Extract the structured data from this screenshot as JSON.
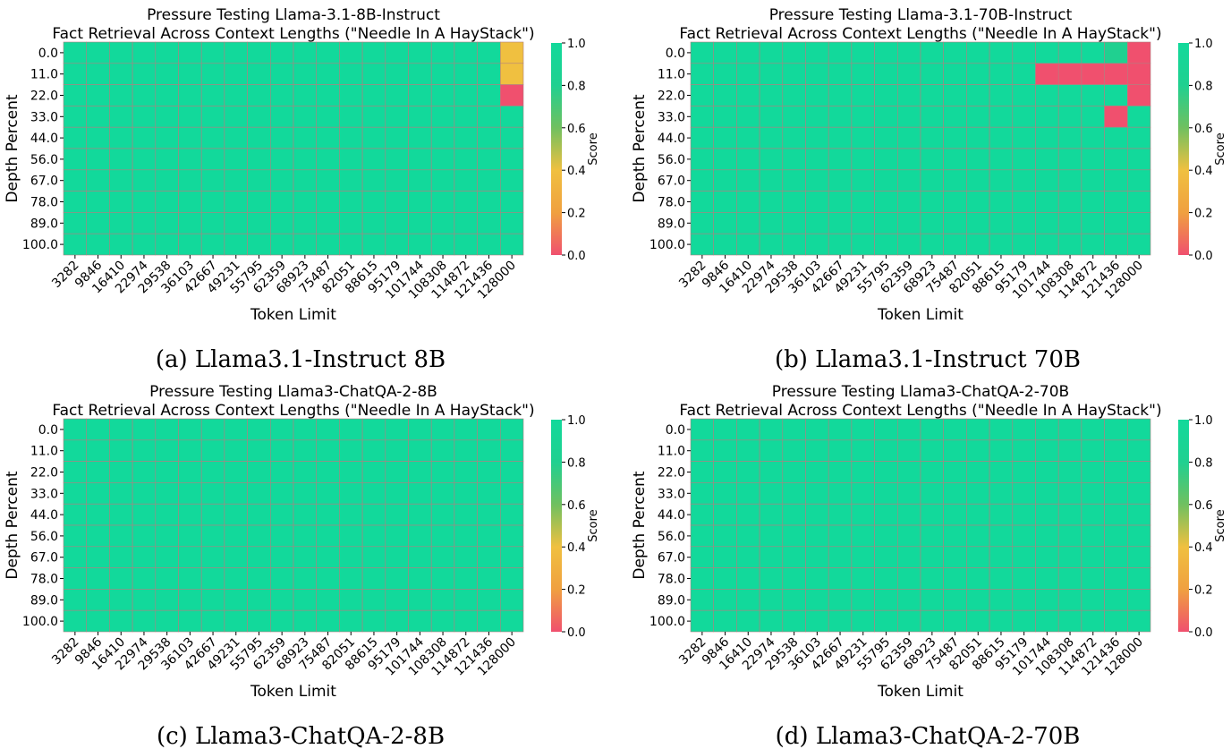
{
  "figure": {
    "colorbar_ticks": [
      "1.0",
      "0.8",
      "0.6",
      "0.4",
      "0.2",
      "0.0"
    ],
    "colormap": [
      "#F0506E",
      "#F0A040",
      "#F0C040",
      "#70C060",
      "#20D090",
      "#12D99B"
    ],
    "grid_color": "#B08080"
  },
  "chart_data": [
    {
      "type": "heatmap",
      "title_line1": "Pressure Testing Llama-3.1-8B-Instruct",
      "title_line2": "Fact Retrieval Across Context Lengths (\"Needle In A HayStack\")",
      "xlabel": "Token Limit",
      "ylabel": "Depth Percent",
      "colorbar_label": "Score",
      "caption": "(a) Llama3.1-Instruct 8B",
      "x": [
        "3282",
        "9846",
        "16410",
        "22974",
        "29538",
        "36103",
        "42667",
        "49231",
        "55795",
        "62359",
        "68923",
        "75487",
        "82051",
        "88615",
        "95179",
        "101744",
        "108308",
        "114872",
        "121436",
        "128000"
      ],
      "y": [
        "0.0",
        "11.0",
        "22.0",
        "33.0",
        "44.0",
        "56.0",
        "67.0",
        "78.0",
        "89.0",
        "100.0"
      ],
      "zlim": [
        0,
        1
      ],
      "default": 1.0,
      "cells": [
        {
          "x": "128000",
          "y": "0.0",
          "value": 0.4
        },
        {
          "x": "128000",
          "y": "11.0",
          "value": 0.4
        },
        {
          "x": "128000",
          "y": "22.0",
          "value": 0.0
        }
      ]
    },
    {
      "type": "heatmap",
      "title_line1": "Pressure Testing Llama-3.1-70B-Instruct",
      "title_line2": "Fact Retrieval Across Context Lengths (\"Needle In A HayStack\")",
      "xlabel": "Token Limit",
      "ylabel": "Depth Percent",
      "colorbar_label": "Score",
      "caption": "(b) Llama3.1-Instruct 70B",
      "x": [
        "3282",
        "9846",
        "16410",
        "22974",
        "29538",
        "36103",
        "42667",
        "49231",
        "55795",
        "62359",
        "68923",
        "75487",
        "82051",
        "88615",
        "95179",
        "101744",
        "108308",
        "114872",
        "121436",
        "128000"
      ],
      "y": [
        "0.0",
        "11.0",
        "22.0",
        "33.0",
        "44.0",
        "56.0",
        "67.0",
        "78.0",
        "89.0",
        "100.0"
      ],
      "zlim": [
        0,
        1
      ],
      "default": 1.0,
      "cells": [
        {
          "x": "121436",
          "y": "0.0",
          "value": 0.8
        },
        {
          "x": "128000",
          "y": "0.0",
          "value": 0.0
        },
        {
          "x": "101744",
          "y": "11.0",
          "value": 0.0
        },
        {
          "x": "108308",
          "y": "11.0",
          "value": 0.0
        },
        {
          "x": "114872",
          "y": "11.0",
          "value": 0.0
        },
        {
          "x": "121436",
          "y": "11.0",
          "value": 0.0
        },
        {
          "x": "128000",
          "y": "11.0",
          "value": 0.0
        },
        {
          "x": "128000",
          "y": "22.0",
          "value": 0.0
        },
        {
          "x": "121436",
          "y": "33.0",
          "value": 0.0
        }
      ]
    },
    {
      "type": "heatmap",
      "title_line1": "Pressure Testing Llama3-ChatQA-2-8B",
      "title_line2": "Fact Retrieval Across Context Lengths (\"Needle In A HayStack\")",
      "xlabel": "Token Limit",
      "ylabel": "Depth Percent",
      "colorbar_label": "Score",
      "caption": "(c) Llama3-ChatQA-2-8B",
      "x": [
        "3282",
        "9846",
        "16410",
        "22974",
        "29538",
        "36103",
        "42667",
        "49231",
        "55795",
        "62359",
        "68923",
        "75487",
        "82051",
        "88615",
        "95179",
        "101744",
        "108308",
        "114872",
        "121436",
        "128000"
      ],
      "y": [
        "0.0",
        "11.0",
        "22.0",
        "33.0",
        "44.0",
        "56.0",
        "67.0",
        "78.0",
        "89.0",
        "100.0"
      ],
      "zlim": [
        0,
        1
      ],
      "default": 1.0,
      "cells": []
    },
    {
      "type": "heatmap",
      "title_line1": "Pressure Testing Llama3-ChatQA-2-70B",
      "title_line2": "Fact Retrieval Across Context Lengths (\"Needle In A HayStack\")",
      "xlabel": "Token Limit",
      "ylabel": "Depth Percent",
      "colorbar_label": "Score",
      "caption": "(d) Llama3-ChatQA-2-70B",
      "x": [
        "3282",
        "9846",
        "16410",
        "22974",
        "29538",
        "36103",
        "42667",
        "49231",
        "55795",
        "62359",
        "68923",
        "75487",
        "82051",
        "88615",
        "95179",
        "101744",
        "108308",
        "114872",
        "121436",
        "128000"
      ],
      "y": [
        "0.0",
        "11.0",
        "22.0",
        "33.0",
        "44.0",
        "56.0",
        "67.0",
        "78.0",
        "89.0",
        "100.0"
      ],
      "zlim": [
        0,
        1
      ],
      "default": 1.0,
      "cells": []
    }
  ]
}
